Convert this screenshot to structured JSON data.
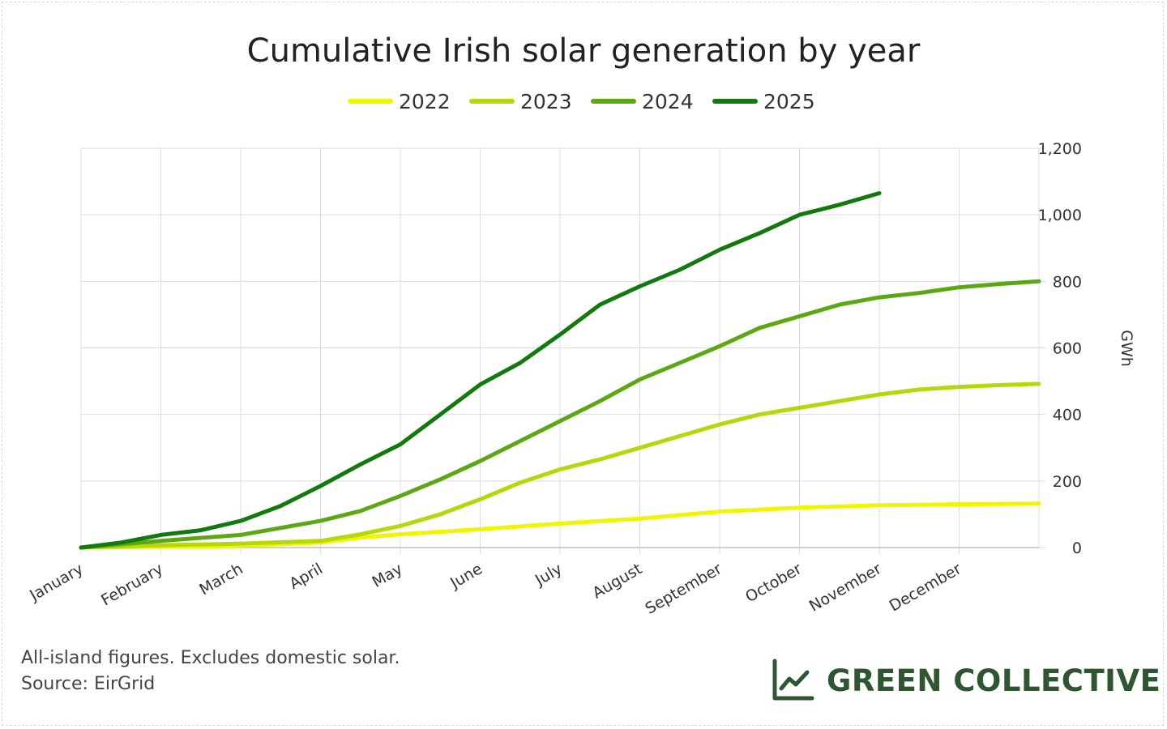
{
  "colors": {
    "2022": "#f0f500",
    "2023": "#b5d80d",
    "2024": "#5ca814",
    "2025": "#12790f",
    "logo": "#2f5532"
  },
  "logo": {
    "text": "GREEN COLLECTIVE",
    "icon": "line-chart-icon"
  },
  "footer": {
    "note": "All-island figures. Excludes domestic solar.",
    "source": "Source: EirGrid"
  },
  "chart_data": {
    "type": "line",
    "title": "Cumulative Irish solar generation by year",
    "ylabel": "GWh",
    "xlabel": "",
    "ylim": [
      0,
      1200
    ],
    "yticks": [
      0,
      200,
      400,
      600,
      800,
      1000,
      1200
    ],
    "ytick_labels": [
      "0",
      "200",
      "400",
      "600",
      "800",
      "1,000",
      "1,200"
    ],
    "y_axis_side": "right",
    "grid": true,
    "legend_position": "top",
    "categories": [
      "January",
      "February",
      "March",
      "April",
      "May",
      "June",
      "July",
      "August",
      "September",
      "October",
      "November",
      "December"
    ],
    "x_range": [
      0,
      12
    ],
    "series": [
      {
        "name": "2022",
        "x": [
          0,
          1,
          2,
          3,
          3.5,
          4,
          5,
          6,
          7,
          8,
          9,
          10,
          11,
          12
        ],
        "values": [
          0,
          2,
          5,
          15,
          30,
          40,
          55,
          72,
          87,
          108,
          120,
          127,
          130,
          132
        ]
      },
      {
        "name": "2023",
        "x": [
          0,
          1,
          2,
          3,
          3.5,
          4,
          4.5,
          5,
          5.5,
          6,
          6.5,
          7,
          7.5,
          8,
          8.5,
          9,
          9.5,
          10,
          10.5,
          11,
          11.5,
          12
        ],
        "values": [
          0,
          7,
          12,
          20,
          40,
          65,
          100,
          145,
          195,
          235,
          265,
          300,
          335,
          370,
          400,
          420,
          440,
          460,
          475,
          483,
          488,
          492
        ]
      },
      {
        "name": "2024",
        "x": [
          0,
          1,
          2,
          3,
          3.5,
          4,
          4.5,
          5,
          5.5,
          6,
          6.5,
          7,
          7.5,
          8,
          8.5,
          9,
          9.5,
          10,
          10.5,
          11,
          11.5,
          12
        ],
        "values": [
          0,
          20,
          38,
          80,
          110,
          155,
          205,
          260,
          320,
          380,
          440,
          505,
          555,
          605,
          660,
          695,
          730,
          752,
          765,
          782,
          792,
          800
        ]
      },
      {
        "name": "2025",
        "x": [
          0,
          0.5,
          1,
          1.5,
          2,
          2.5,
          3,
          3.5,
          4,
          4.5,
          5,
          5.5,
          6,
          6.5,
          7,
          7.5,
          8,
          8.5,
          9,
          9.5,
          10
        ],
        "values": [
          0,
          15,
          38,
          52,
          80,
          125,
          185,
          250,
          310,
          400,
          490,
          555,
          640,
          730,
          785,
          835,
          895,
          945,
          1000,
          1030,
          1065
        ]
      }
    ]
  }
}
